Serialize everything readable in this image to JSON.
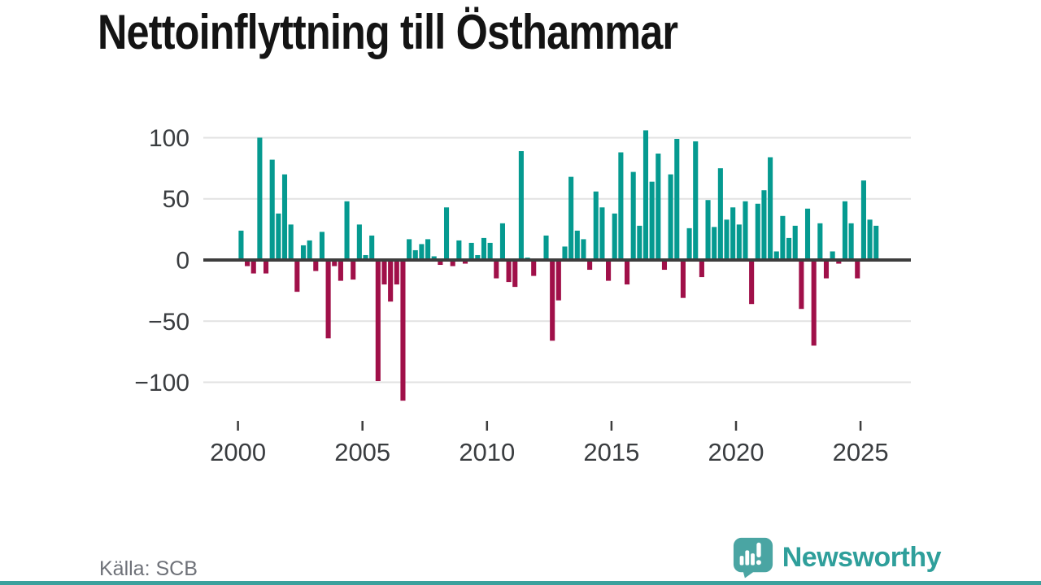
{
  "chart_data": {
    "type": "bar",
    "title": "Nettoinflyttning till Östhammar",
    "x_unit": "quarter",
    "x_tick_years": [
      2000,
      2005,
      2010,
      2015,
      2020,
      2025
    ],
    "y_ticks": [
      {
        "value": 100,
        "label": "100"
      },
      {
        "value": 50,
        "label": "50"
      },
      {
        "value": 0,
        "label": "0"
      },
      {
        "value": -50,
        "label": "−50"
      },
      {
        "value": -100,
        "label": "−100"
      }
    ],
    "ylim": [
      -120,
      112
    ],
    "grid": "horizontal",
    "legend": "none",
    "bar_colors": {
      "positive": "#059a90",
      "negative": "#a01049"
    },
    "series_name": "Nettoinflyttning",
    "quarters": [
      "2000 Q1",
      "2000 Q2",
      "2000 Q3",
      "2000 Q4",
      "2001 Q1",
      "2001 Q2",
      "2001 Q3",
      "2001 Q4",
      "2002 Q1",
      "2002 Q2",
      "2002 Q3",
      "2002 Q4",
      "2003 Q1",
      "2003 Q2",
      "2003 Q3",
      "2003 Q4",
      "2004 Q1",
      "2004 Q2",
      "2004 Q3",
      "2004 Q4",
      "2005 Q1",
      "2005 Q2",
      "2005 Q3",
      "2005 Q4",
      "2006 Q1",
      "2006 Q2",
      "2006 Q3",
      "2006 Q4",
      "2007 Q1",
      "2007 Q2",
      "2007 Q3",
      "2007 Q4",
      "2008 Q1",
      "2008 Q2",
      "2008 Q3",
      "2008 Q4",
      "2009 Q1",
      "2009 Q2",
      "2009 Q3",
      "2009 Q4",
      "2010 Q1",
      "2010 Q2",
      "2010 Q3",
      "2010 Q4",
      "2011 Q1",
      "2011 Q2",
      "2011 Q3",
      "2011 Q4",
      "2012 Q1",
      "2012 Q2",
      "2012 Q3",
      "2012 Q4",
      "2013 Q1",
      "2013 Q2",
      "2013 Q3",
      "2013 Q4",
      "2014 Q1",
      "2014 Q2",
      "2014 Q3",
      "2014 Q4",
      "2015 Q1",
      "2015 Q2",
      "2015 Q3",
      "2015 Q4",
      "2016 Q1",
      "2016 Q2",
      "2016 Q3",
      "2016 Q4",
      "2017 Q1",
      "2017 Q2",
      "2017 Q3",
      "2017 Q4",
      "2018 Q1",
      "2018 Q2",
      "2018 Q3",
      "2018 Q4",
      "2019 Q1",
      "2019 Q2",
      "2019 Q3",
      "2019 Q4",
      "2020 Q1",
      "2020 Q2",
      "2020 Q3",
      "2020 Q4",
      "2021 Q1",
      "2021 Q2",
      "2021 Q3",
      "2021 Q4",
      "2022 Q1",
      "2022 Q2",
      "2022 Q3",
      "2022 Q4",
      "2023 Q1",
      "2023 Q2",
      "2023 Q3",
      "2023 Q4",
      "2024 Q1",
      "2024 Q2",
      "2024 Q3",
      "2024 Q4",
      "2025 Q1",
      "2025 Q2",
      "2025 Q3"
    ],
    "values": [
      24,
      -5,
      -11,
      100,
      -11,
      82,
      38,
      70,
      29,
      -26,
      12,
      16,
      -9,
      23,
      -64,
      -5,
      -17,
      48,
      -16,
      29,
      4,
      20,
      -99,
      -20,
      -34,
      -20,
      -115,
      17,
      8,
      13,
      17,
      3,
      -4,
      43,
      -5,
      16,
      -3,
      14,
      4,
      18,
      14,
      -15,
      30,
      -18,
      -22,
      89,
      2,
      -13,
      0,
      20,
      -66,
      -33,
      11,
      68,
      24,
      17,
      -8,
      56,
      43,
      -17,
      38,
      88,
      -20,
      72,
      28,
      106,
      64,
      87,
      -8,
      70,
      99,
      -31,
      26,
      97,
      -14,
      49,
      27,
      75,
      33,
      43,
      29,
      48,
      -36,
      46,
      57,
      84,
      7,
      36,
      18,
      28,
      -40,
      42,
      -70,
      30,
      -15,
      7,
      -3,
      48,
      30,
      -15,
      65,
      33,
      28
    ]
  },
  "footer": {
    "source_label": "Källa: SCB",
    "brand_name": "Newsworthy"
  },
  "theme": {
    "positive_color": "#059a90",
    "negative_color": "#a01049",
    "axis_color": "#3d3d3d",
    "gridline_color": "#e2e2e2",
    "brand_mark_color": "#4aa5a3",
    "brand_text_color": "#2f9f9b",
    "bottom_strip_color": "#3aa19d"
  }
}
